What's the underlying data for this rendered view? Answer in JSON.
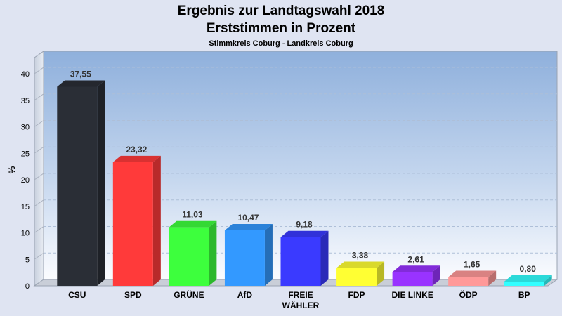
{
  "chart_data": {
    "type": "bar",
    "title": "Ergebnis zur Landtagswahl 2018",
    "title2": "Erststimmen in Prozent",
    "subtitle": "Stimmkreis Coburg - Landkreis Coburg",
    "ylabel": "%",
    "ylim": [
      0,
      40
    ],
    "yticks": [
      "0",
      "5",
      "10",
      "15",
      "20",
      "25",
      "30",
      "35",
      "40"
    ],
    "categories": [
      "CSU",
      "SPD",
      "GRÜNE",
      "AfD",
      "FREIE WÄHLER",
      "FDP",
      "DIE LINKE",
      "ÖDP",
      "BP"
    ],
    "values": [
      37.55,
      23.32,
      11.03,
      10.47,
      9.18,
      3.38,
      2.61,
      1.65,
      0.8
    ],
    "value_labels": [
      "37,55",
      "23,32",
      "11,03",
      "10,47",
      "9,18",
      "3,38",
      "2,61",
      "1,65",
      "0,80"
    ],
    "colors": [
      "#2a2e36",
      "#ff3a3a",
      "#3dff3d",
      "#3399ff",
      "#3a3aff",
      "#ffff33",
      "#9933ff",
      "#ff9999",
      "#33ffff"
    ],
    "grid": true,
    "legend": "none"
  }
}
